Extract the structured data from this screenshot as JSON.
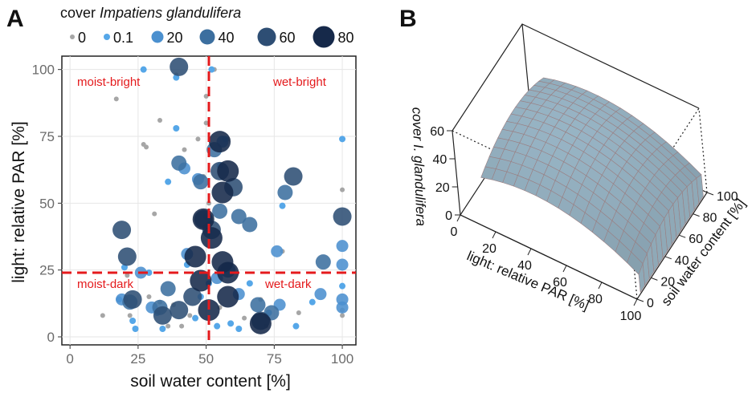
{
  "panel_a": {
    "letter": "A"
  },
  "panel_b": {
    "letter": "B"
  },
  "chart_data": [
    {
      "type": "scatter",
      "panel": "A",
      "xlabel": "soil water content [%]",
      "ylabel": "light: relative PAR [%]",
      "xlim": [
        -3,
        105
      ],
      "ylim": [
        -3,
        105
      ],
      "xticks": [
        "0",
        "25",
        "50",
        "75",
        "100"
      ],
      "yticks": [
        "0",
        "25",
        "50",
        "75",
        "100"
      ],
      "grid": true,
      "legend": {
        "title_prefix": "cover",
        "title_species": "Impatiens glandulifera",
        "placement": "top",
        "entries": [
          {
            "label": "0",
            "cover": 0,
            "color": "#a6a6a6"
          },
          {
            "label": "0.1",
            "cover": 0.1,
            "color": "#56a7e8"
          },
          {
            "label": "20",
            "cover": 20,
            "color": "#4b90cf"
          },
          {
            "label": "40",
            "cover": 40,
            "color": "#3c6f9f"
          },
          {
            "label": "60",
            "cover": 60,
            "color": "#2e4e74"
          },
          {
            "label": "80",
            "cover": 80,
            "color": "#16294a"
          }
        ]
      },
      "reference_lines": {
        "x": 51,
        "y": 24,
        "color": "#e41a1c",
        "style": "dashed"
      },
      "quadrant_labels": {
        "top_left": "moist-bright",
        "top_right": "wet-bright",
        "bottom_left": "moist-dark",
        "bottom_right": "wet-dark"
      },
      "points": [
        {
          "x": 12,
          "y": 8,
          "cover": 0
        },
        {
          "x": 17,
          "y": 89,
          "cover": 0
        },
        {
          "x": 21,
          "y": 23,
          "cover": 0
        },
        {
          "x": 22,
          "y": 8,
          "cover": 0
        },
        {
          "x": 27,
          "y": 72,
          "cover": 0
        },
        {
          "x": 28,
          "y": 71,
          "cover": 0
        },
        {
          "x": 29,
          "y": 15,
          "cover": 0
        },
        {
          "x": 31,
          "y": 46,
          "cover": 0
        },
        {
          "x": 33,
          "y": 81,
          "cover": 0
        },
        {
          "x": 33,
          "y": 13,
          "cover": 0
        },
        {
          "x": 36,
          "y": 4,
          "cover": 0
        },
        {
          "x": 38,
          "y": 12,
          "cover": 0
        },
        {
          "x": 39,
          "y": 98,
          "cover": 0
        },
        {
          "x": 41,
          "y": 4,
          "cover": 0
        },
        {
          "x": 42,
          "y": 70,
          "cover": 0
        },
        {
          "x": 44,
          "y": 8,
          "cover": 0
        },
        {
          "x": 47,
          "y": 74,
          "cover": 0
        },
        {
          "x": 49,
          "y": 60,
          "cover": 0
        },
        {
          "x": 50,
          "y": 90,
          "cover": 0
        },
        {
          "x": 50,
          "y": 80,
          "cover": 0
        },
        {
          "x": 51,
          "y": 50,
          "cover": 0
        },
        {
          "x": 53,
          "y": 100,
          "cover": 0
        },
        {
          "x": 55,
          "y": 11,
          "cover": 0
        },
        {
          "x": 58,
          "y": 74,
          "cover": 0
        },
        {
          "x": 64,
          "y": 7,
          "cover": 0
        },
        {
          "x": 70,
          "y": 14,
          "cover": 0
        },
        {
          "x": 72,
          "y": 4,
          "cover": 0
        },
        {
          "x": 78,
          "y": 32,
          "cover": 0
        },
        {
          "x": 84,
          "y": 9,
          "cover": 0
        },
        {
          "x": 100,
          "y": 55,
          "cover": 0
        },
        {
          "x": 100,
          "y": 10,
          "cover": 0
        },
        {
          "x": 100,
          "y": 8,
          "cover": 0
        },
        {
          "x": 18,
          "y": 14,
          "cover": 0.1
        },
        {
          "x": 20,
          "y": 26,
          "cover": 0.1
        },
        {
          "x": 23,
          "y": 6,
          "cover": 0.1
        },
        {
          "x": 24,
          "y": 3,
          "cover": 0.1
        },
        {
          "x": 27,
          "y": 100,
          "cover": 0.1
        },
        {
          "x": 29,
          "y": 24,
          "cover": 0.1
        },
        {
          "x": 32,
          "y": 9,
          "cover": 0.1
        },
        {
          "x": 34,
          "y": 3,
          "cover": 0.1
        },
        {
          "x": 36,
          "y": 58,
          "cover": 0.1
        },
        {
          "x": 39,
          "y": 97,
          "cover": 0.1
        },
        {
          "x": 39,
          "y": 78,
          "cover": 0.1
        },
        {
          "x": 43,
          "y": 27,
          "cover": 0.1
        },
        {
          "x": 46,
          "y": 7,
          "cover": 0.1
        },
        {
          "x": 48,
          "y": 15,
          "cover": 0.1
        },
        {
          "x": 50,
          "y": 45,
          "cover": 0.1
        },
        {
          "x": 51,
          "y": 20,
          "cover": 0.1
        },
        {
          "x": 52,
          "y": 100,
          "cover": 0.1
        },
        {
          "x": 54,
          "y": 4,
          "cover": 0.1
        },
        {
          "x": 55,
          "y": 64,
          "cover": 0.1
        },
        {
          "x": 57,
          "y": 74,
          "cover": 0.1
        },
        {
          "x": 59,
          "y": 5,
          "cover": 0.1
        },
        {
          "x": 62,
          "y": 3,
          "cover": 0.1
        },
        {
          "x": 66,
          "y": 20,
          "cover": 0.1
        },
        {
          "x": 73,
          "y": 9,
          "cover": 0.1
        },
        {
          "x": 78,
          "y": 49,
          "cover": 0.1
        },
        {
          "x": 83,
          "y": 4,
          "cover": 0.1
        },
        {
          "x": 89,
          "y": 13,
          "cover": 0.1
        },
        {
          "x": 100,
          "y": 74,
          "cover": 0.1
        },
        {
          "x": 100,
          "y": 19,
          "cover": 0.1
        },
        {
          "x": 19,
          "y": 14,
          "cover": 20
        },
        {
          "x": 26,
          "y": 24,
          "cover": 20
        },
        {
          "x": 30,
          "y": 11,
          "cover": 20
        },
        {
          "x": 42,
          "y": 63,
          "cover": 20
        },
        {
          "x": 43,
          "y": 31,
          "cover": 20
        },
        {
          "x": 47,
          "y": 59,
          "cover": 20
        },
        {
          "x": 54,
          "y": 22,
          "cover": 20
        },
        {
          "x": 56,
          "y": 73,
          "cover": 20
        },
        {
          "x": 62,
          "y": 16,
          "cover": 20
        },
        {
          "x": 76,
          "y": 32,
          "cover": 20
        },
        {
          "x": 77,
          "y": 12,
          "cover": 20
        },
        {
          "x": 92,
          "y": 16,
          "cover": 20
        },
        {
          "x": 100,
          "y": 34,
          "cover": 20
        },
        {
          "x": 100,
          "y": 27,
          "cover": 20
        },
        {
          "x": 100,
          "y": 14,
          "cover": 20
        },
        {
          "x": 100,
          "y": 11,
          "cover": 20
        },
        {
          "x": 22,
          "y": 13,
          "cover": 40
        },
        {
          "x": 33,
          "y": 11,
          "cover": 40
        },
        {
          "x": 36,
          "y": 18,
          "cover": 40
        },
        {
          "x": 40,
          "y": 65,
          "cover": 40
        },
        {
          "x": 48,
          "y": 58,
          "cover": 40
        },
        {
          "x": 53,
          "y": 70,
          "cover": 40
        },
        {
          "x": 55,
          "y": 47,
          "cover": 40
        },
        {
          "x": 58,
          "y": 25,
          "cover": 40
        },
        {
          "x": 62,
          "y": 45,
          "cover": 40
        },
        {
          "x": 66,
          "y": 42,
          "cover": 40
        },
        {
          "x": 69,
          "y": 12,
          "cover": 40
        },
        {
          "x": 74,
          "y": 9,
          "cover": 40
        },
        {
          "x": 79,
          "y": 54,
          "cover": 40
        },
        {
          "x": 93,
          "y": 28,
          "cover": 40
        },
        {
          "x": 19,
          "y": 40,
          "cover": 60
        },
        {
          "x": 21,
          "y": 30,
          "cover": 60
        },
        {
          "x": 23,
          "y": 14,
          "cover": 60
        },
        {
          "x": 34,
          "y": 8,
          "cover": 60
        },
        {
          "x": 40,
          "y": 101,
          "cover": 60
        },
        {
          "x": 40,
          "y": 10,
          "cover": 60
        },
        {
          "x": 45,
          "y": 15,
          "cover": 60
        },
        {
          "x": 49,
          "y": 44,
          "cover": 60
        },
        {
          "x": 52,
          "y": 40,
          "cover": 60
        },
        {
          "x": 55,
          "y": 62,
          "cover": 60
        },
        {
          "x": 60,
          "y": 56,
          "cover": 60
        },
        {
          "x": 70,
          "y": 6,
          "cover": 60
        },
        {
          "x": 82,
          "y": 60,
          "cover": 60
        },
        {
          "x": 100,
          "y": 45,
          "cover": 60
        },
        {
          "x": 46,
          "y": 30,
          "cover": 80
        },
        {
          "x": 48,
          "y": 21,
          "cover": 80
        },
        {
          "x": 49,
          "y": 44,
          "cover": 80
        },
        {
          "x": 51,
          "y": 10,
          "cover": 80
        },
        {
          "x": 52,
          "y": 37,
          "cover": 80
        },
        {
          "x": 55,
          "y": 73,
          "cover": 80
        },
        {
          "x": 56,
          "y": 28,
          "cover": 80
        },
        {
          "x": 56,
          "y": 54,
          "cover": 80
        },
        {
          "x": 58,
          "y": 62,
          "cover": 80
        },
        {
          "x": 58,
          "y": 15,
          "cover": 80
        },
        {
          "x": 58,
          "y": 24,
          "cover": 80
        },
        {
          "x": 70,
          "y": 5,
          "cover": 80
        }
      ]
    },
    {
      "type": "surface3d",
      "panel": "B",
      "zlabel": "cover I. glandulifera",
      "xlabel": "light: relative PAR [%]",
      "ylabel": "soil water content [%]",
      "xticks": [
        "0",
        "20",
        "40",
        "60",
        "80",
        "100"
      ],
      "yticks": [
        "0",
        "20",
        "40",
        "60",
        "80",
        "100"
      ],
      "zticks": [
        "0",
        "20",
        "40",
        "60"
      ],
      "surface_color": "#8aa4b3",
      "grid_color": "#9a7f82"
    }
  ]
}
